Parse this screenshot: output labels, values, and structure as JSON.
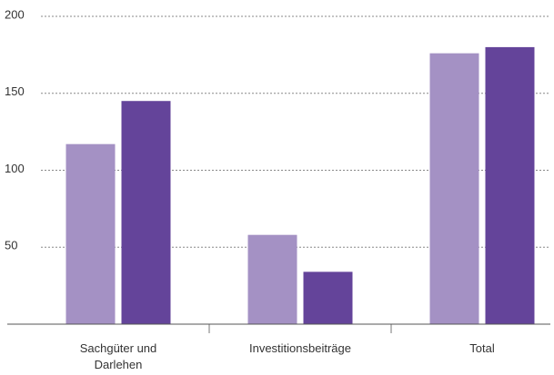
{
  "chart_data": {
    "type": "bar",
    "categories": [
      "Sachgüter und Darlehen",
      "Investitionsbeiträge",
      "Total"
    ],
    "series": [
      {
        "color": "#a491c4",
        "values": [
          117,
          58,
          176
        ]
      },
      {
        "color": "#64449a",
        "values": [
          145,
          34,
          180
        ]
      }
    ],
    "ylim": [
      0,
      200
    ],
    "yticks": [
      50,
      100,
      150,
      200
    ],
    "grid": true
  }
}
